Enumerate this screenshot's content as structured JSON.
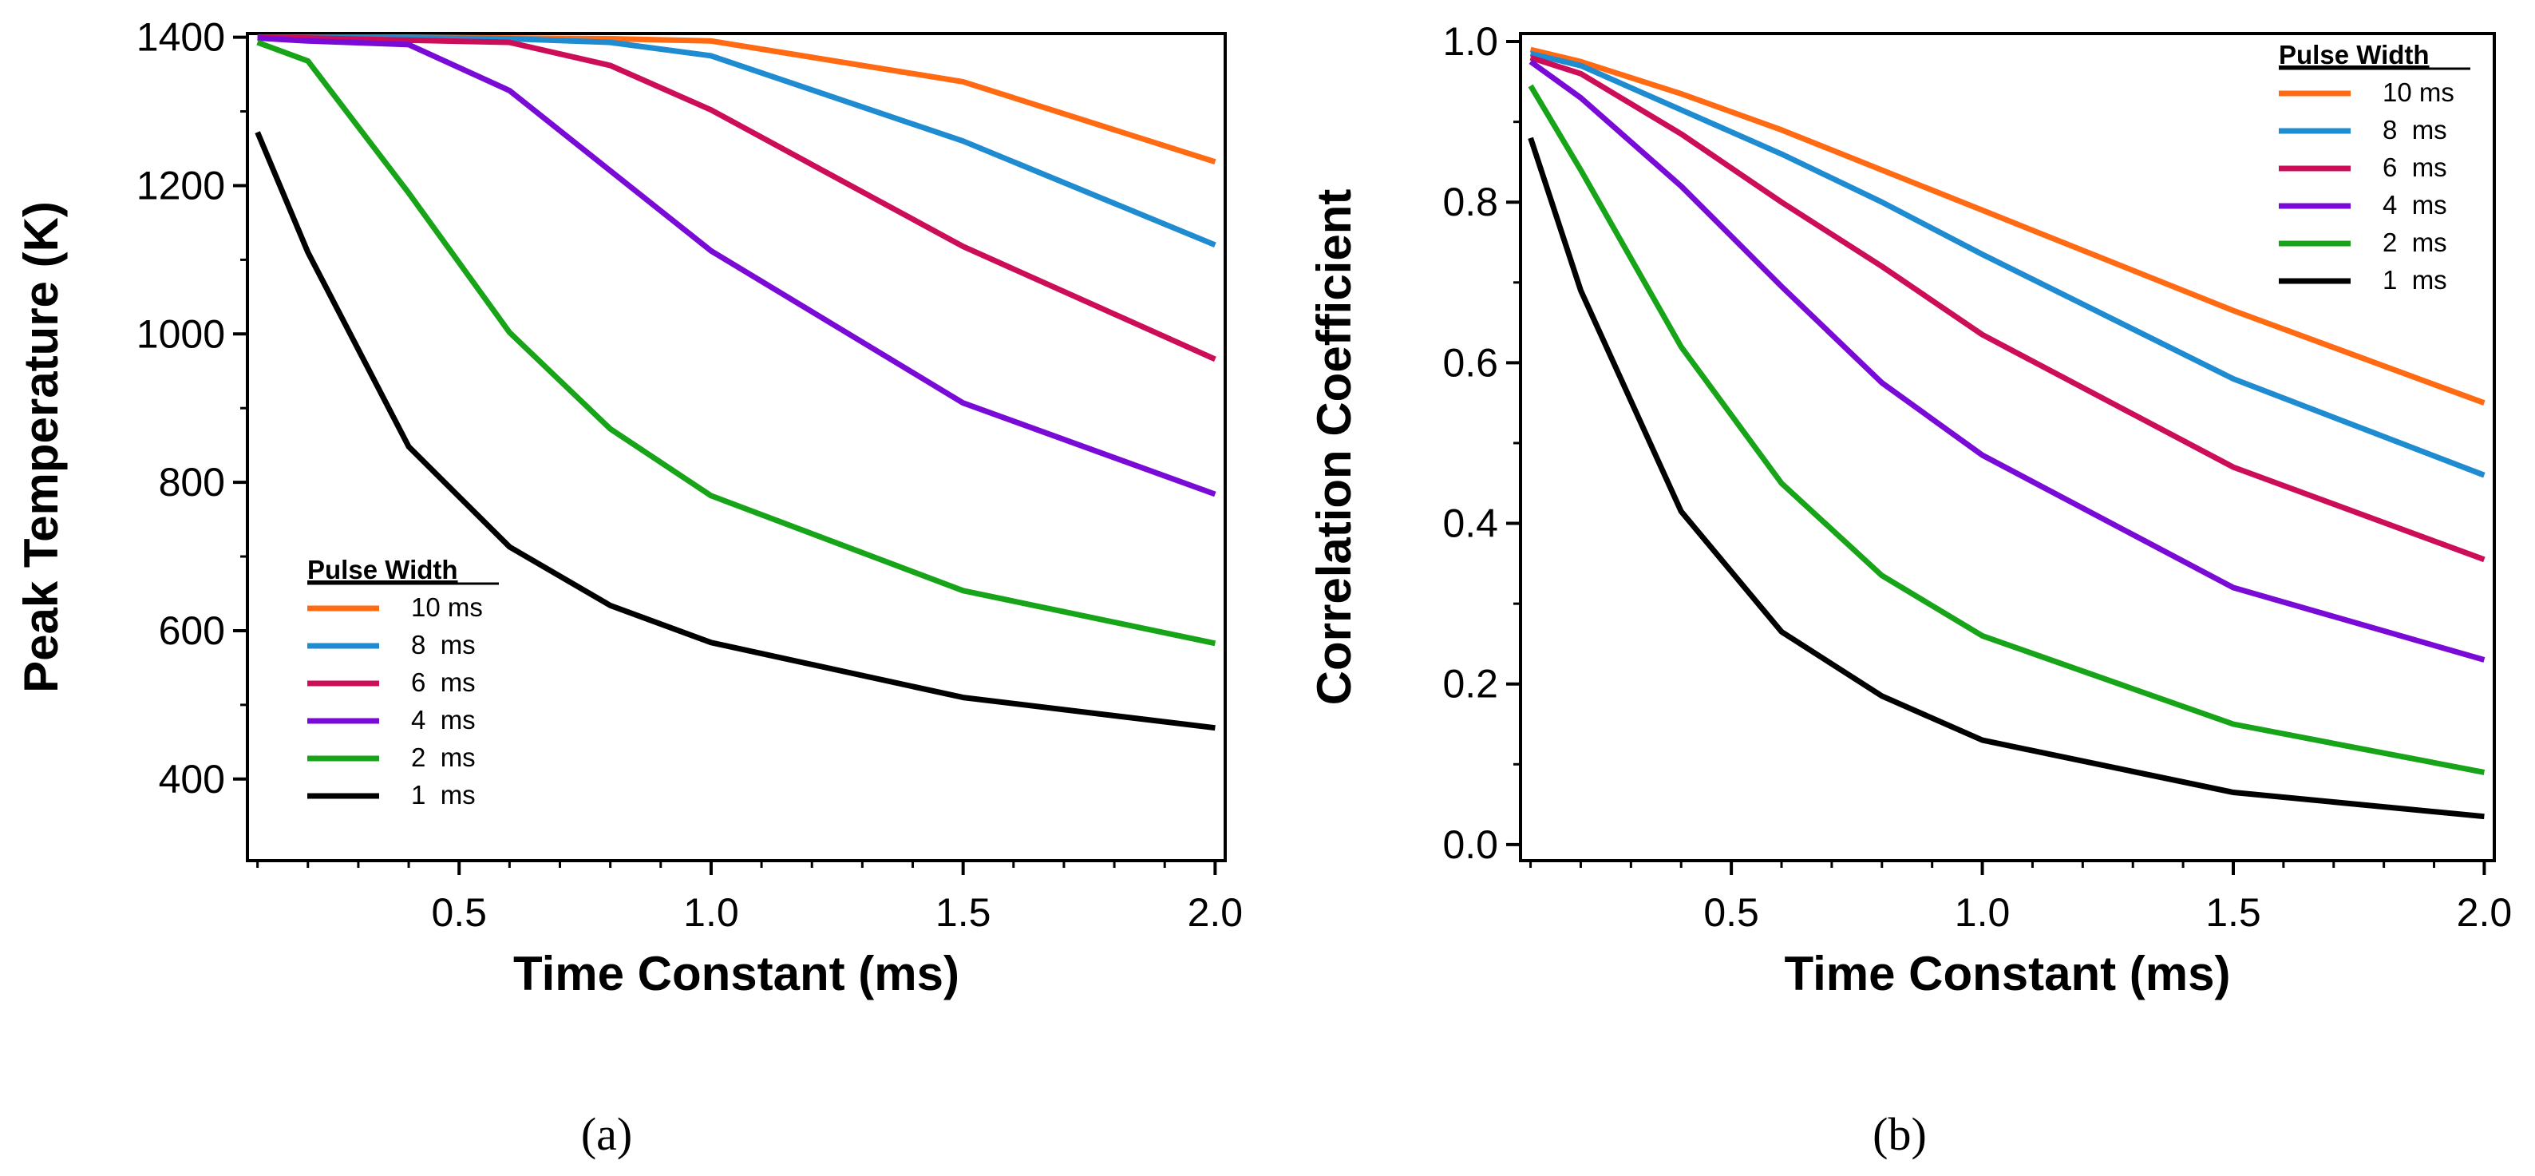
{
  "chart_data": [
    {
      "type": "line",
      "panel": "a",
      "caption": "(a)",
      "xlabel": "Time Constant (ms)",
      "ylabel": "Peak Temperature (K)",
      "xlim": [
        0.08,
        2.02
      ],
      "ylim": [
        290,
        1405
      ],
      "xticks": [
        0.5,
        1.0,
        1.5,
        2.0
      ],
      "xtick_labels": [
        "0.5",
        "1.0",
        "1.5",
        "2.0"
      ],
      "yticks": [
        400,
        600,
        800,
        1000,
        1200,
        1400
      ],
      "ytick_labels": [
        "400",
        "600",
        "800",
        "1000",
        "1200",
        "1400"
      ],
      "legend_title": "Pulse Width",
      "legend_position": "lower-left",
      "x": [
        0.1,
        0.2,
        0.4,
        0.6,
        0.8,
        1.0,
        1.5,
        2.0
      ],
      "series": [
        {
          "name": "10 ms",
          "color": "#ff6a13",
          "values": [
            1400,
            1400,
            1400,
            1399,
            1398,
            1395,
            1340,
            1232
          ]
        },
        {
          "name": "8  ms",
          "color": "#1f8bd0",
          "values": [
            1400,
            1400,
            1399,
            1398,
            1393,
            1375,
            1260,
            1120
          ]
        },
        {
          "name": "6  ms",
          "color": "#cc0e59",
          "values": [
            1400,
            1399,
            1396,
            1393,
            1362,
            1302,
            1118,
            966
          ]
        },
        {
          "name": "4  ms",
          "color": "#7a0bd6",
          "values": [
            1399,
            1395,
            1390,
            1328,
            1220,
            1112,
            907,
            784
          ]
        },
        {
          "name": "2  ms",
          "color": "#18a418",
          "values": [
            1393,
            1368,
            1190,
            1002,
            872,
            782,
            654,
            583
          ]
        },
        {
          "name": "1  ms",
          "color": "#000000",
          "values": [
            1272,
            1110,
            848,
            713,
            634,
            584,
            510,
            469
          ]
        }
      ]
    },
    {
      "type": "line",
      "panel": "b",
      "caption": "(b)",
      "xlabel": "Time Constant (ms)",
      "ylabel": "Correlation Coefficient",
      "xlim": [
        0.08,
        2.02
      ],
      "ylim": [
        -0.02,
        1.01
      ],
      "xticks": [
        0.5,
        1.0,
        1.5,
        2.0
      ],
      "xtick_labels": [
        "0.5",
        "1.0",
        "1.5",
        "2.0"
      ],
      "yticks": [
        0.0,
        0.2,
        0.4,
        0.6,
        0.8,
        1.0
      ],
      "ytick_labels": [
        "0.0",
        "0.2",
        "0.4",
        "0.6",
        "0.8",
        "1.0"
      ],
      "legend_title": "Pulse Width",
      "legend_position": "top-right",
      "x": [
        0.1,
        0.2,
        0.4,
        0.6,
        0.8,
        1.0,
        1.5,
        2.0
      ],
      "series": [
        {
          "name": "10 ms",
          "color": "#ff6a13",
          "values": [
            0.99,
            0.975,
            0.935,
            0.89,
            0.84,
            0.79,
            0.665,
            0.55
          ]
        },
        {
          "name": "8  ms",
          "color": "#1f8bd0",
          "values": [
            0.985,
            0.97,
            0.915,
            0.86,
            0.8,
            0.735,
            0.58,
            0.46
          ]
        },
        {
          "name": "6  ms",
          "color": "#cc0e59",
          "values": [
            0.98,
            0.96,
            0.885,
            0.8,
            0.72,
            0.635,
            0.47,
            0.355
          ]
        },
        {
          "name": "4  ms",
          "color": "#7a0bd6",
          "values": [
            0.975,
            0.93,
            0.82,
            0.695,
            0.575,
            0.485,
            0.32,
            0.23
          ]
        },
        {
          "name": "2  ms",
          "color": "#18a418",
          "values": [
            0.945,
            0.84,
            0.62,
            0.45,
            0.335,
            0.26,
            0.15,
            0.09
          ]
        },
        {
          "name": "1  ms",
          "color": "#000000",
          "values": [
            0.88,
            0.69,
            0.415,
            0.265,
            0.185,
            0.13,
            0.065,
            0.035
          ]
        }
      ]
    }
  ]
}
